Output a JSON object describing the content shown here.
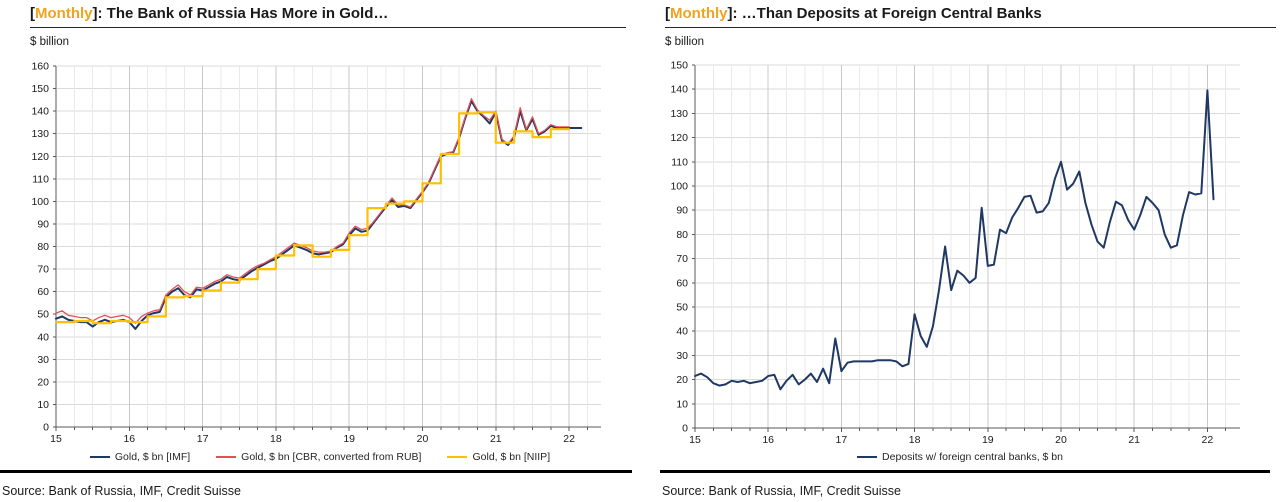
{
  "panels": [
    {
      "title": {
        "open": "[",
        "accent": "Monthly",
        "rest": "]: The Bank of Russia Has More in Gold…"
      },
      "units": "$ billion",
      "source": "Source: Bank of Russia, IMF, Credit Suisse"
    },
    {
      "title": {
        "open": "[",
        "accent": "Monthly",
        "rest": "]: …Than Deposits at Foreign Central Banks"
      },
      "units": "$ billion",
      "source": "Source: Bank of Russia, IMF, Credit Suisse"
    }
  ],
  "colors": {
    "accent_title": "#F0A41E",
    "navy": "#1F3864",
    "red": "#E05252",
    "gold": "#FFC000"
  },
  "chart_data": [
    {
      "type": "line",
      "title": "The Bank of Russia Has More in Gold",
      "ylabel": "$ billion",
      "ylim": [
        0,
        160
      ],
      "ytick": 10,
      "grid": true,
      "legend_position": "bottom",
      "x_axis": {
        "start_year": 2015,
        "tick_labels": [
          "15",
          "16",
          "17",
          "18",
          "19",
          "20",
          "21",
          "22"
        ],
        "minor": "quarterly"
      },
      "series": [
        {
          "name": "Gold, $ bn [IMF]",
          "color": "#1F3864",
          "freq": "monthly",
          "start": "2015-01",
          "width": 2,
          "values": [
            48,
            49,
            47.5,
            47,
            46.5,
            46.5,
            44.5,
            46.5,
            47.5,
            46.5,
            47,
            47.5,
            46.5,
            43.5,
            47,
            49.5,
            50.5,
            51,
            57.5,
            60,
            61.5,
            58.5,
            57.5,
            61,
            60.5,
            62,
            63.5,
            64.5,
            66.5,
            65.5,
            65,
            67,
            69,
            70.5,
            72,
            73.5,
            74.5,
            76.5,
            78.5,
            80.5,
            79.5,
            78.5,
            77,
            76.5,
            77,
            77.5,
            79.5,
            81,
            85,
            88,
            86.5,
            87,
            90.5,
            94,
            97.5,
            100.5,
            97.5,
            98,
            97,
            100.5,
            104,
            108,
            114,
            120,
            121,
            121.5,
            128,
            137,
            144.5,
            140,
            137.5,
            134.5,
            139.5,
            127,
            125,
            128.5,
            140,
            131.5,
            136.5,
            129.5,
            131,
            133.5,
            132.5,
            132.5,
            132.5,
            132.5,
            132.5
          ]
        },
        {
          "name": "Gold, $ bn [CBR, converted from RUB]",
          "color": "#E05252",
          "freq": "monthly",
          "start": "2015-01",
          "width": 1.3,
          "values": [
            50.5,
            51.5,
            49.5,
            49,
            48.5,
            48.5,
            47,
            48.5,
            49.5,
            48.5,
            49,
            49.5,
            48.5,
            46,
            49,
            50.5,
            51.5,
            52,
            58.5,
            61,
            63,
            60,
            58.5,
            62,
            61.5,
            63,
            64.5,
            65.5,
            67.5,
            66.5,
            66,
            68,
            70,
            71.5,
            72.5,
            74,
            75.5,
            77.5,
            79.5,
            81.5,
            80.5,
            79.5,
            78,
            77.5,
            77.5,
            78,
            80,
            81.5,
            86,
            89,
            87.5,
            88,
            91,
            94.5,
            98,
            101.5,
            98.5,
            98.5,
            97.5,
            101,
            104.5,
            108.5,
            114.5,
            120.5,
            121.5,
            122,
            128.5,
            137.5,
            145.5,
            140.5,
            138,
            136,
            140,
            127.5,
            125.5,
            129,
            141.5,
            132,
            137.5,
            130,
            131.5,
            134,
            133,
            133,
            133
          ]
        },
        {
          "name": "Gold, $ bn [NIIP]",
          "color": "#FFC000",
          "freq": "quarterly",
          "start": "2015-Q1",
          "width": 2.2,
          "step": true,
          "values": [
            46.5,
            47,
            46,
            47,
            46.5,
            49,
            57.5,
            58,
            60.5,
            64,
            65.5,
            70,
            76,
            80.5,
            75.5,
            78.5,
            85,
            97,
            99,
            100,
            108,
            121,
            139,
            139.5,
            126,
            131,
            128.5,
            132
          ]
        }
      ]
    },
    {
      "type": "line",
      "title": "Than Deposits at Foreign Central Banks",
      "ylabel": "$ billion",
      "ylim": [
        0,
        150
      ],
      "ytick": 10,
      "grid": true,
      "legend_position": "bottom",
      "x_axis": {
        "start_year": 2015,
        "tick_labels": [
          "15",
          "16",
          "17",
          "18",
          "19",
          "20",
          "21",
          "22"
        ],
        "minor": "quarterly"
      },
      "series": [
        {
          "name": "Deposits w/ foreign central banks, $ bn",
          "color": "#1F3864",
          "freq": "monthly",
          "start": "2015-01",
          "width": 2,
          "values": [
            21.5,
            22.5,
            21,
            18.5,
            17.5,
            18,
            19.5,
            19,
            19.5,
            18.5,
            19,
            19.5,
            21.5,
            22,
            16,
            19.5,
            22,
            18,
            20,
            22.5,
            19,
            24.5,
            18.5,
            37,
            23.5,
            27,
            27.5,
            27.5,
            27.5,
            27.5,
            28,
            28,
            28,
            27.5,
            25.5,
            26.5,
            47,
            38,
            33.5,
            42,
            57,
            75,
            57,
            65,
            63,
            60,
            62,
            91,
            67,
            67.5,
            82,
            80.5,
            87,
            91,
            95.5,
            96,
            89,
            89.5,
            93,
            103,
            110,
            98.5,
            101,
            106,
            93,
            84,
            77,
            74.5,
            85,
            93.5,
            92,
            86,
            82,
            88,
            95.5,
            93,
            90,
            80,
            74.5,
            75.5,
            88,
            97.5,
            96.5,
            97,
            139.5,
            94.5
          ]
        }
      ]
    }
  ]
}
